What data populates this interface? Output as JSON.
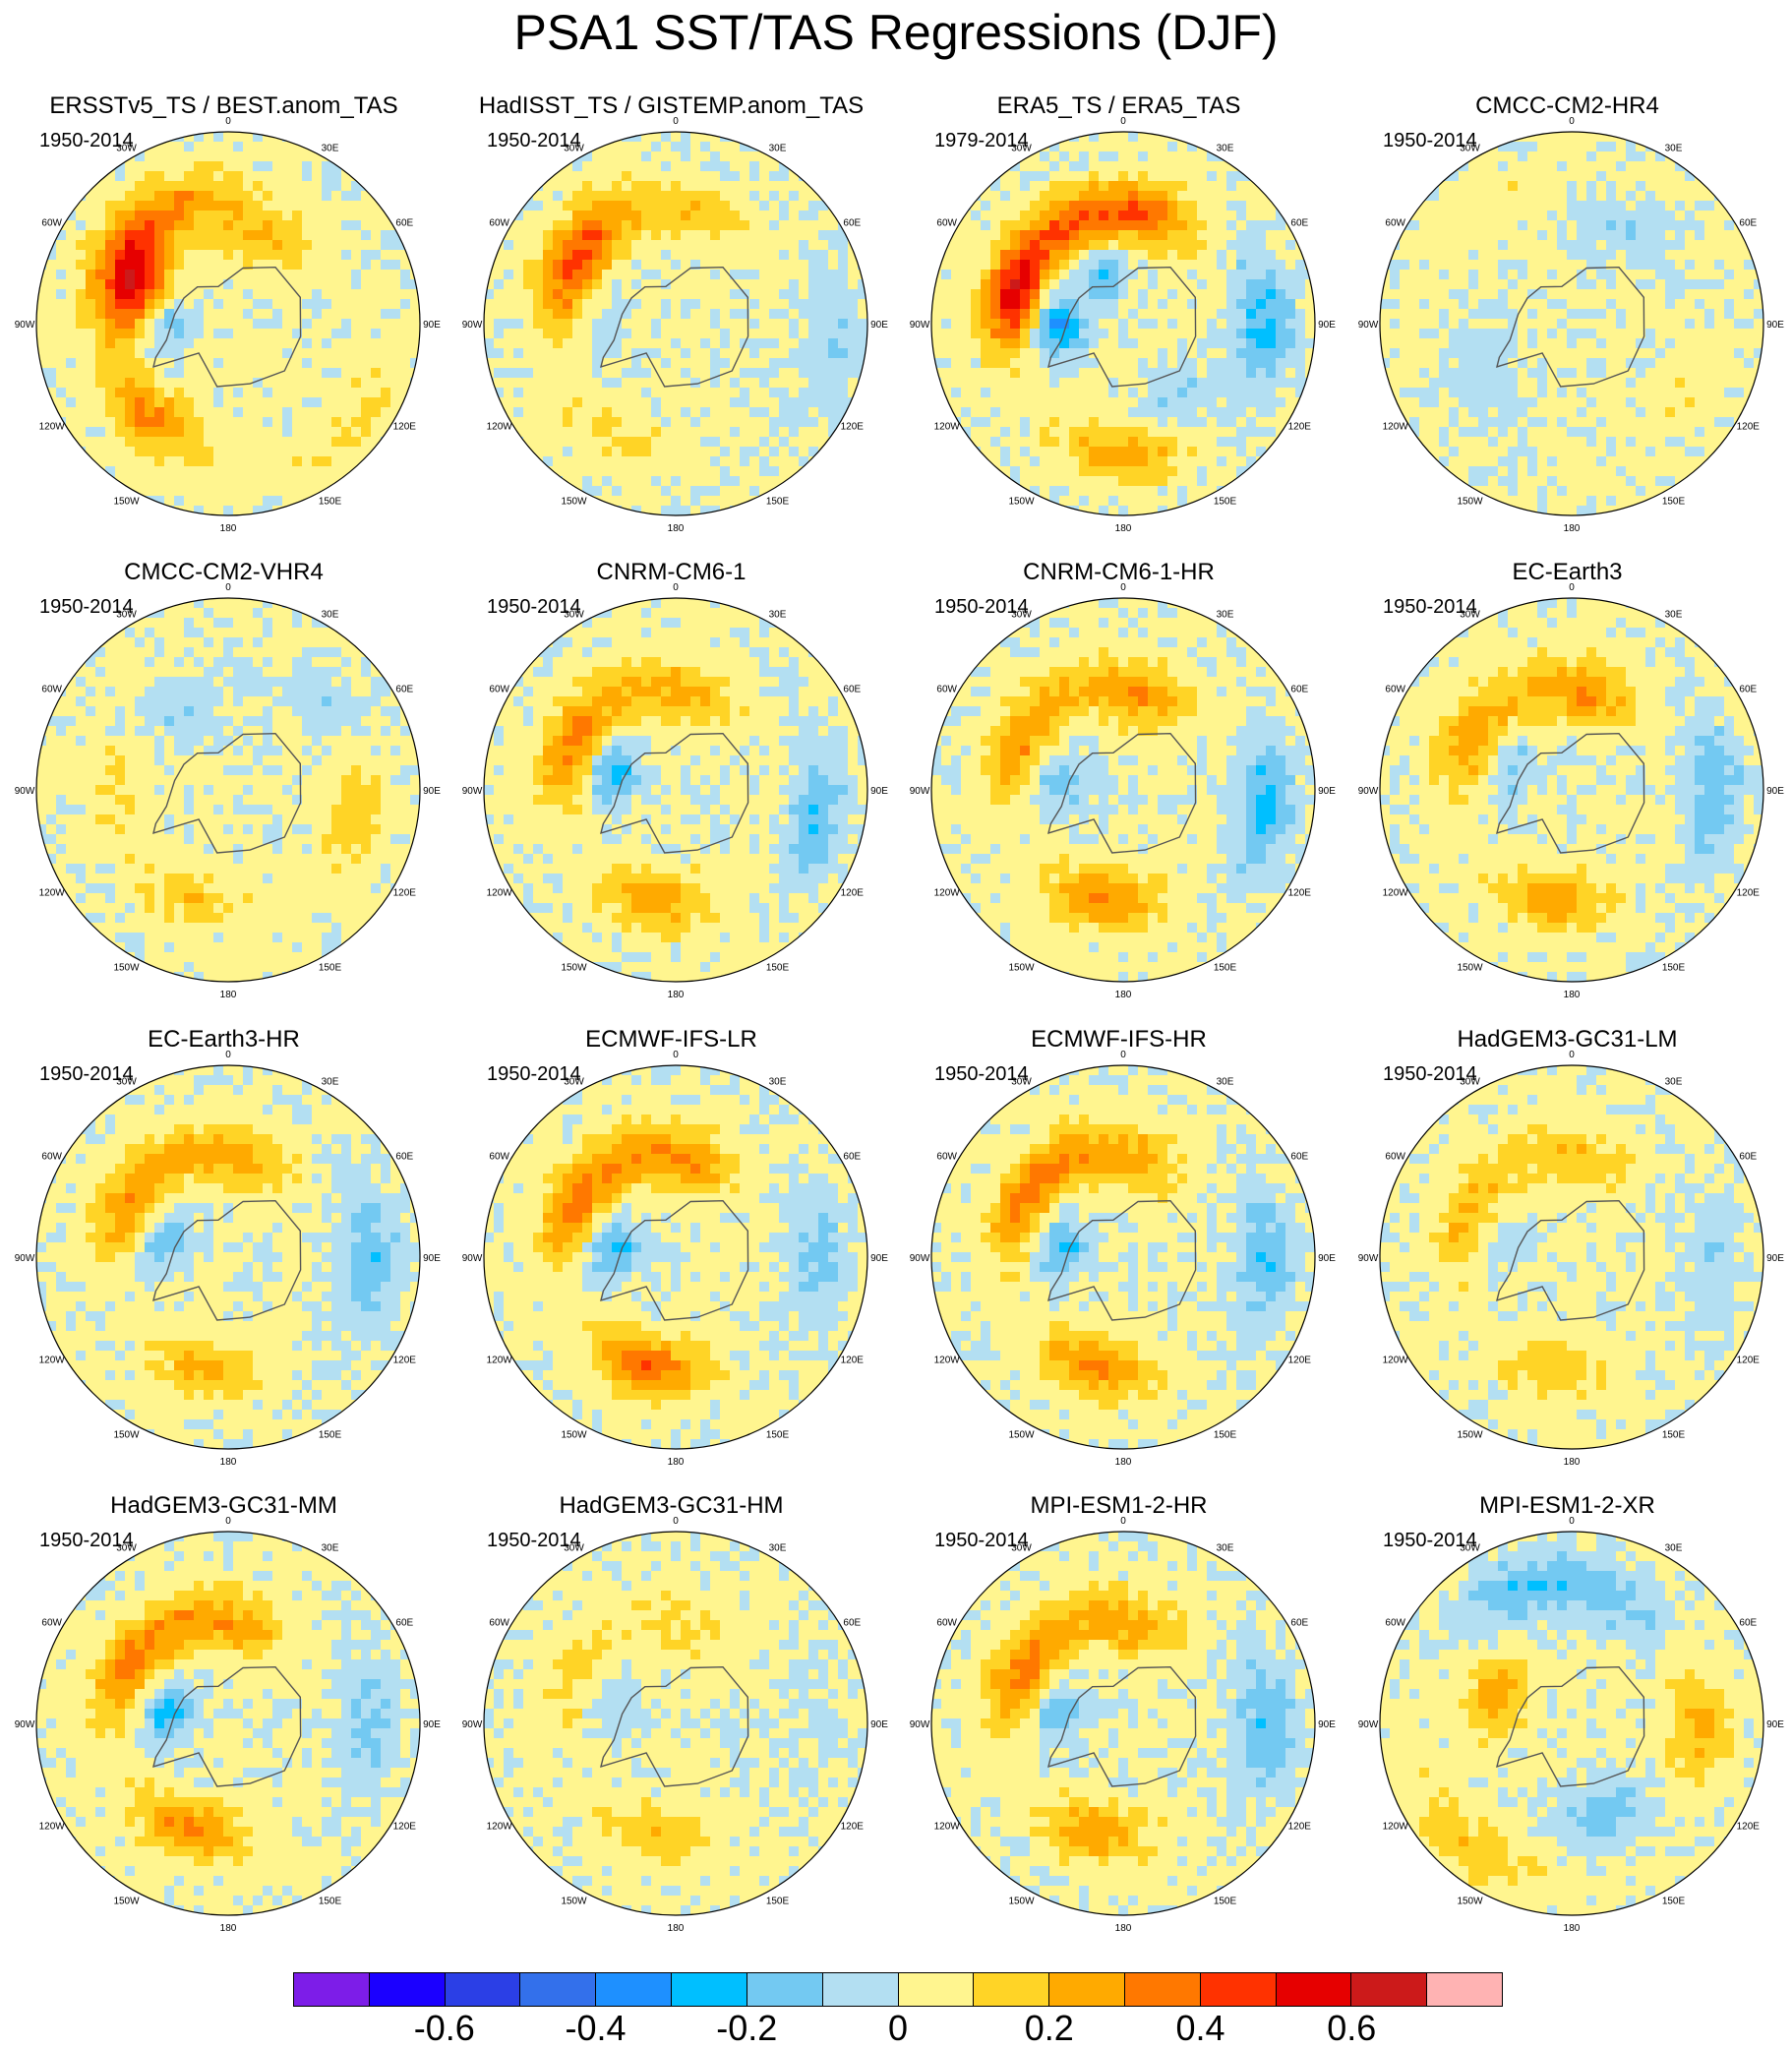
{
  "title": "PSA1 SST/TAS Regressions (DJF)",
  "lon_labels": [
    "0",
    "30E",
    "60E",
    "90E",
    "120E",
    "150E",
    "180",
    "150W",
    "120W",
    "90W",
    "60W",
    "30W"
  ],
  "chart_data": [
    {
      "type": "heatmap",
      "projection": "south-polar-stereographic",
      "title": "ERSSTv5_TS / BEST.anom_TAS",
      "period": "1950-2014",
      "blobs": [
        [
          -110,
          -60,
          0.5
        ],
        [
          -125,
          -50,
          0.3
        ],
        [
          -40,
          -52,
          0.3
        ],
        [
          -90,
          -70,
          -0.2
        ],
        [
          160,
          -60,
          0.2
        ],
        [
          -160,
          -50,
          0.2
        ],
        [
          50,
          -40,
          0.1
        ]
      ]
    },
    {
      "type": "heatmap",
      "projection": "south-polar-stereographic",
      "title": "HadISST_TS / GISTEMP.anom_TAS",
      "period": "1950-2014",
      "blobs": [
        [
          -115,
          -55,
          0.35
        ],
        [
          -140,
          -50,
          0.2
        ],
        [
          -95,
          -65,
          -0.1
        ],
        [
          170,
          -55,
          0.15
        ],
        [
          -30,
          -50,
          0.1
        ],
        [
          80,
          -40,
          -0.1
        ]
      ]
    },
    {
      "type": "heatmap",
      "projection": "south-polar-stereographic",
      "title": "ERA5_TS / ERA5_TAS",
      "period": "1979-2014",
      "blobs": [
        [
          -105,
          -55,
          0.55
        ],
        [
          -90,
          -70,
          -0.35
        ],
        [
          -150,
          -55,
          0.3
        ],
        [
          -160,
          -75,
          -0.2
        ],
        [
          0,
          -50,
          0.25
        ],
        [
          170,
          -55,
          0.35
        ],
        [
          90,
          -45,
          -0.25
        ],
        [
          30,
          -60,
          -0.15
        ]
      ]
    },
    {
      "type": "heatmap",
      "projection": "south-polar-stereographic",
      "title": "CMCC-CM2-HR4",
      "period": "1950-2014",
      "blobs": [
        [
          -60,
          -60,
          -0.1
        ],
        [
          60,
          -50,
          0.05
        ],
        [
          150,
          -55,
          -0.1
        ],
        [
          -150,
          -45,
          0.05
        ]
      ]
    },
    {
      "type": "heatmap",
      "projection": "south-polar-stereographic",
      "title": "CMCC-CM2-VHR4",
      "period": "1950-2014",
      "blobs": [
        [
          -20,
          -55,
          0.15
        ],
        [
          80,
          -50,
          0.15
        ],
        [
          -90,
          -55,
          0.1
        ],
        [
          -150,
          -60,
          -0.1
        ],
        [
          130,
          -50,
          -0.1
        ]
      ]
    },
    {
      "type": "heatmap",
      "projection": "south-polar-stereographic",
      "title": "CNRM-CM6-1",
      "period": "1950-2014",
      "blobs": [
        [
          -110,
          -55,
          0.3
        ],
        [
          -105,
          -70,
          -0.25
        ],
        [
          -10,
          -55,
          0.25
        ],
        [
          170,
          -60,
          0.2
        ],
        [
          80,
          -45,
          -0.2
        ],
        [
          -150,
          -55,
          0.15
        ]
      ]
    },
    {
      "type": "heatmap",
      "projection": "south-polar-stereographic",
      "title": "CNRM-CM6-1-HR",
      "period": "1950-2014",
      "blobs": [
        [
          -110,
          -55,
          0.25
        ],
        [
          -100,
          -70,
          -0.2
        ],
        [
          -10,
          -55,
          0.3
        ],
        [
          170,
          -60,
          0.25
        ],
        [
          85,
          -45,
          -0.25
        ],
        [
          -150,
          -55,
          0.15
        ]
      ]
    },
    {
      "type": "heatmap",
      "projection": "south-polar-stereographic",
      "title": "EC-Earth3",
      "period": "1950-2014",
      "blobs": [
        [
          -115,
          -55,
          0.25
        ],
        [
          -110,
          -70,
          -0.15
        ],
        [
          -10,
          -55,
          0.25
        ],
        [
          170,
          -60,
          0.25
        ],
        [
          90,
          -45,
          -0.2
        ],
        [
          -155,
          -55,
          0.1
        ]
      ]
    },
    {
      "type": "heatmap",
      "projection": "south-polar-stereographic",
      "title": "EC-Earth3-HR",
      "period": "1950-2014",
      "blobs": [
        [
          -115,
          -55,
          0.25
        ],
        [
          -105,
          -70,
          -0.2
        ],
        [
          -10,
          -55,
          0.2
        ],
        [
          170,
          -60,
          0.2
        ],
        [
          90,
          -45,
          -0.2
        ],
        [
          -155,
          -55,
          0.15
        ]
      ]
    },
    {
      "type": "heatmap",
      "projection": "south-polar-stereographic",
      "title": "ECMWF-IFS-LR",
      "period": "1950-2014",
      "blobs": [
        [
          -115,
          -55,
          0.3
        ],
        [
          -100,
          -70,
          -0.25
        ],
        [
          -15,
          -55,
          0.35
        ],
        [
          170,
          -60,
          0.25
        ],
        [
          90,
          -45,
          -0.15
        ],
        [
          -155,
          -55,
          0.2
        ]
      ]
    },
    {
      "type": "heatmap",
      "projection": "south-polar-stereographic",
      "title": "ECMWF-IFS-HR",
      "period": "1950-2014",
      "blobs": [
        [
          -115,
          -55,
          0.3
        ],
        [
          -100,
          -70,
          -0.25
        ],
        [
          -15,
          -55,
          0.3
        ],
        [
          170,
          -60,
          0.2
        ],
        [
          90,
          -45,
          -0.2
        ],
        [
          -155,
          -55,
          0.2
        ]
      ]
    },
    {
      "type": "heatmap",
      "projection": "south-polar-stereographic",
      "title": "HadGEM3-GC31-LM",
      "period": "1950-2014",
      "blobs": [
        [
          -110,
          -55,
          0.2
        ],
        [
          -105,
          -70,
          -0.1
        ],
        [
          -10,
          -55,
          0.15
        ],
        [
          170,
          -60,
          0.15
        ],
        [
          90,
          -45,
          -0.1
        ],
        [
          -155,
          -55,
          0.1
        ]
      ]
    },
    {
      "type": "heatmap",
      "projection": "south-polar-stereographic",
      "title": "HadGEM3-GC31-MM",
      "period": "1950-2014",
      "blobs": [
        [
          -115,
          -55,
          0.3
        ],
        [
          -100,
          -70,
          -0.25
        ],
        [
          -20,
          -55,
          0.3
        ],
        [
          170,
          -60,
          0.2
        ],
        [
          90,
          -45,
          -0.15
        ],
        [
          -155,
          -55,
          0.2
        ]
      ]
    },
    {
      "type": "heatmap",
      "projection": "south-polar-stereographic",
      "title": "HadGEM3-GC31-HM",
      "period": "1950-2014",
      "blobs": [
        [
          -110,
          -55,
          0.1
        ],
        [
          -100,
          -70,
          -0.1
        ],
        [
          -10,
          -55,
          0.15
        ],
        [
          170,
          -60,
          0.1
        ],
        [
          90,
          -45,
          -0.05
        ],
        [
          -150,
          -55,
          0.05
        ]
      ]
    },
    {
      "type": "heatmap",
      "projection": "south-polar-stereographic",
      "title": "MPI-ESM1-2-HR",
      "period": "1950-2014",
      "blobs": [
        [
          -115,
          -55,
          0.3
        ],
        [
          -100,
          -70,
          -0.2
        ],
        [
          -15,
          -55,
          0.25
        ],
        [
          170,
          -60,
          0.2
        ],
        [
          90,
          -45,
          -0.2
        ],
        [
          -155,
          -55,
          0.15
        ]
      ]
    },
    {
      "type": "heatmap",
      "projection": "south-polar-stereographic",
      "title": "MPI-ESM1-2-XR",
      "period": "1950-2014",
      "blobs": [
        [
          -110,
          -65,
          0.25
        ],
        [
          90,
          -50,
          0.2
        ],
        [
          -40,
          -40,
          0.15
        ],
        [
          20,
          -60,
          -0.2
        ],
        [
          160,
          -50,
          -0.15
        ],
        [
          -160,
          -45,
          -0.2
        ]
      ]
    }
  ],
  "colorbar": {
    "colors": [
      "#7d1de8",
      "#1b00ff",
      "#2b3fe6",
      "#3370eb",
      "#1e90ff",
      "#00bfff",
      "#73c9f2",
      "#b3dff2",
      "#fff58f",
      "#ffd426",
      "#ffaa00",
      "#ff7800",
      "#ff3200",
      "#e60000",
      "#cc1a1a",
      "#ffb3b3"
    ],
    "levels": [
      -0.7,
      -0.6,
      -0.5,
      -0.4,
      -0.3,
      -0.2,
      -0.1,
      0,
      0.1,
      0.2,
      0.3,
      0.4,
      0.5,
      0.6,
      0.7
    ],
    "labels": [
      "-0.6",
      "-0.4",
      "-0.2",
      "0",
      "0.2",
      "0.4",
      "0.6"
    ],
    "label_levels": [
      -0.6,
      -0.4,
      -0.2,
      0,
      0.2,
      0.4,
      0.6
    ]
  }
}
